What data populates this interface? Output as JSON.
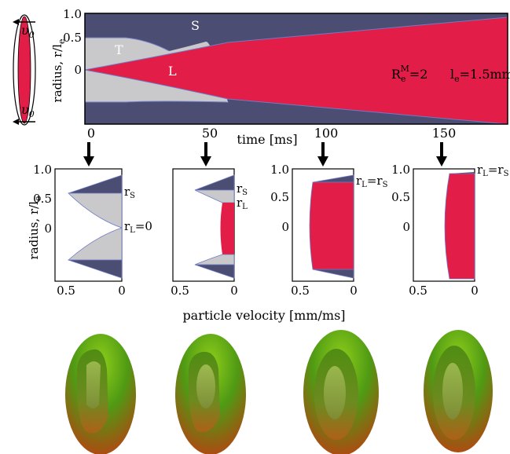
{
  "colors": {
    "solid": "#4b4d73",
    "transition": "#c9c9cb",
    "liquid": "#e11d48",
    "axis": "#000000",
    "boundary": "#6f7bc4"
  },
  "top_panel": {
    "y_axis_label": "radius, r/l",
    "y_axis_sub": "e",
    "y_ticks": [
      "1.0",
      "0.5",
      "0"
    ],
    "x_axis_label": "time [ms]",
    "x_ticks": [
      "0",
      "50",
      "100",
      "150"
    ],
    "region_labels": {
      "solid": "S",
      "transition": "T",
      "liquid": "L"
    },
    "annotation": {
      "R": "R",
      "R_sub": "e",
      "R_sup": "M",
      "R_rest": "=2",
      "l": "l",
      "l_sub": "e",
      "l_rest": "=1.5mm"
    }
  },
  "sample_icon": {
    "velocity_symbol": "υ",
    "velocity_sub": "0"
  },
  "snapshots": {
    "y_axis_label": "radius, r/l",
    "y_axis_sub": "e",
    "y_ticks": [
      "1.0",
      "0.5",
      "0"
    ],
    "x_ticks": [
      "0.5",
      "0"
    ],
    "x_axis_label": "particle velocity [mm/ms]",
    "panels": [
      {
        "time": "0",
        "labels": [
          {
            "text": "r",
            "sub": "S",
            "rest": ""
          },
          {
            "text": "r",
            "sub": "L",
            "rest": "=0"
          }
        ]
      },
      {
        "time": "50",
        "labels": [
          {
            "text": "r",
            "sub": "S",
            "rest": ""
          },
          {
            "text": "r",
            "sub": "L",
            "rest": ""
          }
        ]
      },
      {
        "time": "100",
        "labels": [
          {
            "text": "r",
            "sub": "L",
            "rest": "=r"
          }
        ]
      },
      {
        "time": "150",
        "labels": [
          {
            "text": "r",
            "sub": "L",
            "rest": "=r"
          }
        ]
      }
    ],
    "label_tail_sub": "S"
  }
}
